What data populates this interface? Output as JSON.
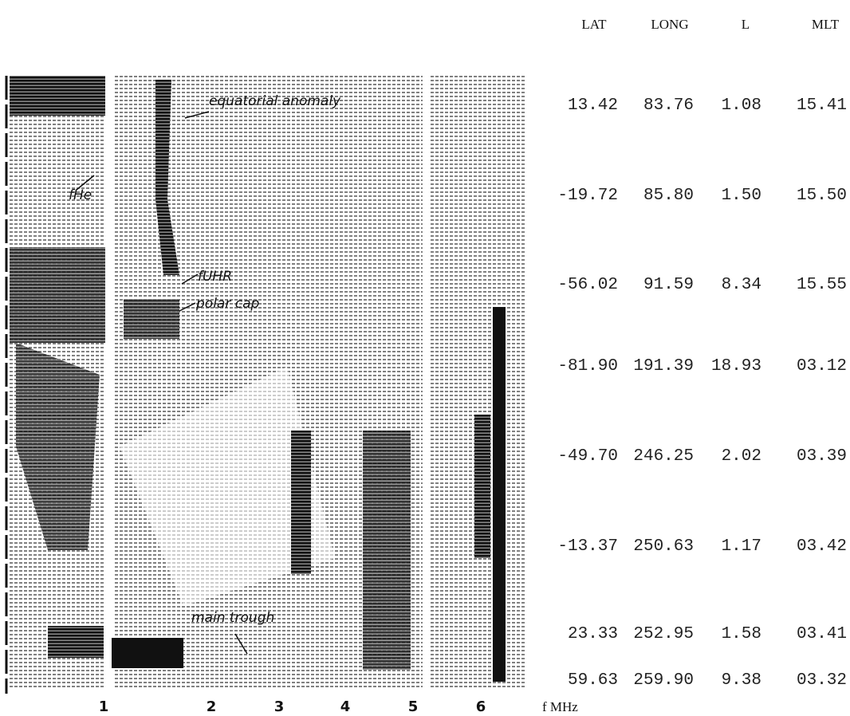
{
  "figure": {
    "annotations": {
      "equatorial": "equatorial anomaly",
      "fhe": "fHe",
      "fuhr": "fUHR",
      "polar": "polar cap",
      "trough": "main trough"
    },
    "x_ticks": [
      "1",
      "2",
      "3",
      "4",
      "5",
      "6"
    ],
    "x_label": "f MHz"
  },
  "table": {
    "header": [
      "LAT",
      "LONG",
      "L",
      "MLT"
    ],
    "rows": [
      [
        "13.42",
        "83.76",
        "1.08",
        "15.41"
      ],
      [
        "-19.72",
        "85.80",
        "1.50",
        "15.50"
      ],
      [
        "-56.02",
        "91.59",
        "8.34",
        "15.55"
      ],
      [
        "-81.90",
        "191.39",
        "18.93",
        "03.12"
      ],
      [
        "-49.70",
        "246.25",
        "2.02",
        "03.39"
      ],
      [
        "-13.37",
        "250.63",
        "1.17",
        "03.42"
      ],
      [
        "23.33",
        "252.95",
        "1.58",
        "03.41"
      ],
      [
        "59.63",
        "259.90",
        "9.38",
        "03.32"
      ]
    ]
  }
}
